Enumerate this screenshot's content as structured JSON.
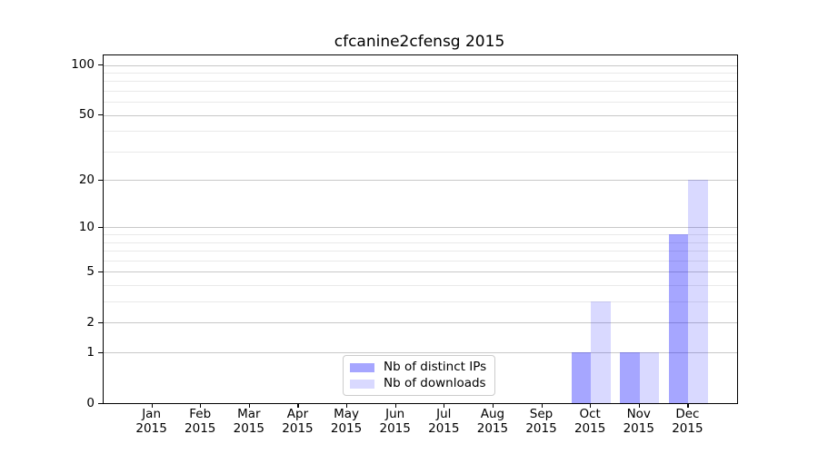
{
  "chart_data": {
    "type": "bar",
    "title": "cfcanine2cfensg 2015",
    "x_months": [
      "Jan",
      "Feb",
      "Mar",
      "Apr",
      "May",
      "Jun",
      "Jul",
      "Aug",
      "Sep",
      "Oct",
      "Nov",
      "Dec"
    ],
    "x_year": "2015",
    "series": [
      {
        "name": "Nb of distinct IPs",
        "color": "rgba(0,0,255,0.35)",
        "values": [
          0,
          0,
          0,
          0,
          0,
          0,
          0,
          0,
          0,
          1,
          1,
          9
        ]
      },
      {
        "name": "Nb of downloads",
        "color": "rgba(0,0,255,0.15)",
        "values": [
          0,
          0,
          0,
          0,
          0,
          0,
          0,
          0,
          0,
          3,
          1,
          20
        ]
      }
    ],
    "yscale": "log1p",
    "ylim": [
      0,
      114
    ],
    "y_major_ticks": [
      0,
      1,
      2,
      5,
      10,
      20,
      50,
      100
    ],
    "y_minor_ticks": [
      3,
      4,
      6,
      7,
      8,
      9,
      30,
      40,
      60,
      70,
      80,
      90
    ],
    "grid": "horizontal",
    "legend_position": "lower-center-inside"
  },
  "colors": {
    "bar_distinct_ips": "rgba(0,0,255,0.35)",
    "bar_downloads": "rgba(0,0,255,0.15)",
    "grid_major": "#c8c8c8",
    "grid_minor": "#e9e9e9",
    "spine": "#000000",
    "background": "#ffffff"
  }
}
